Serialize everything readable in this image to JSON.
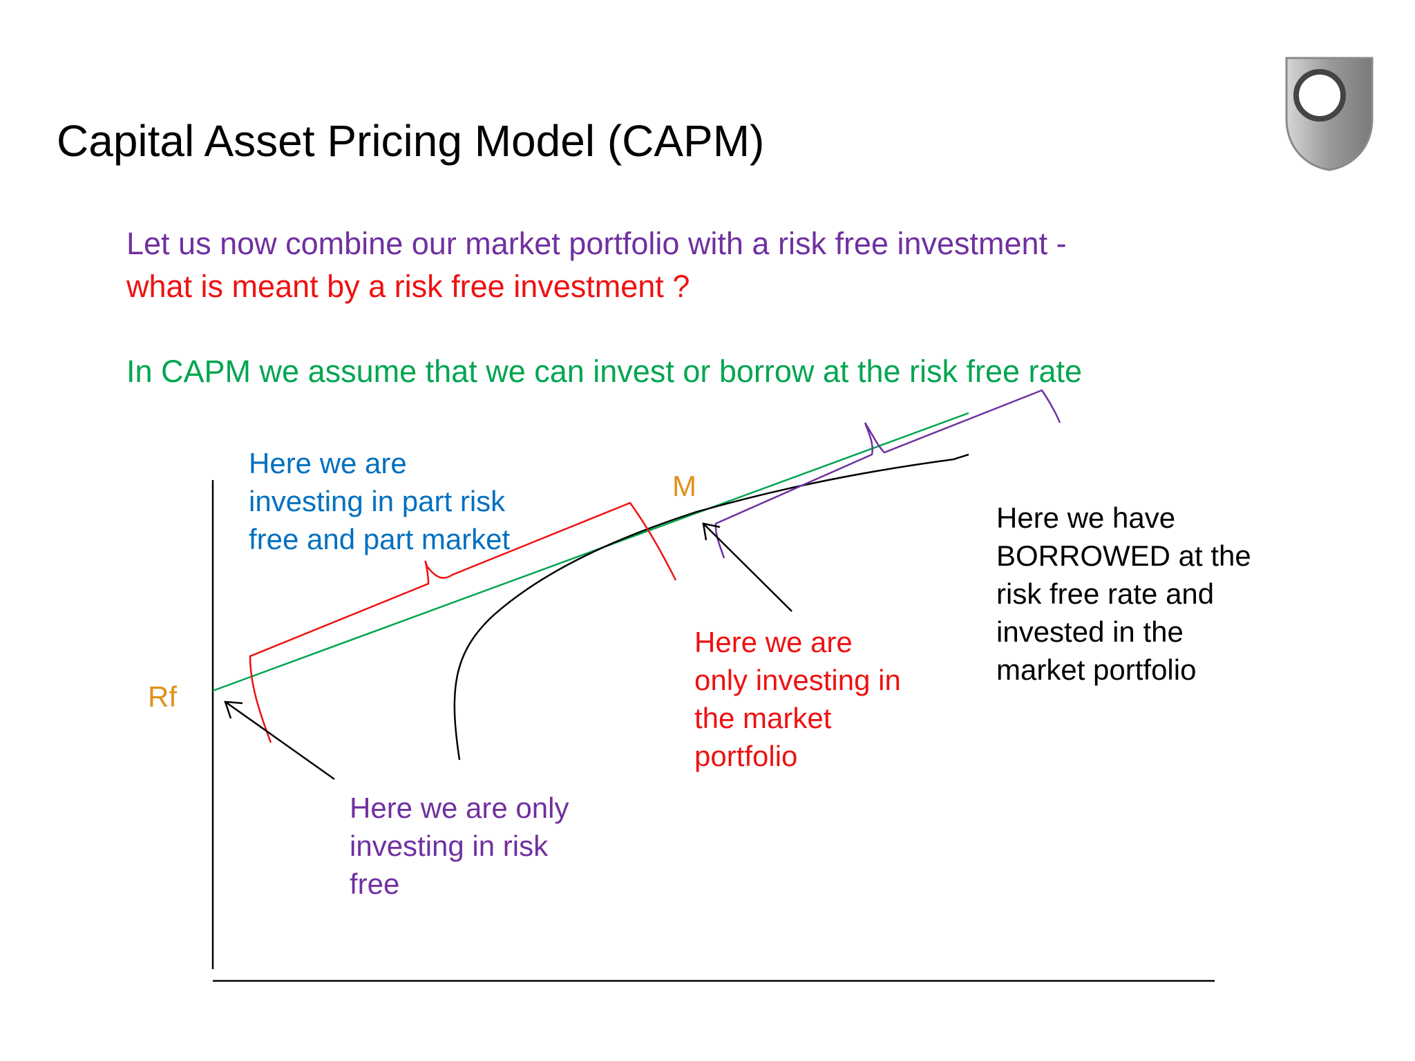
{
  "slide": {
    "title": "Capital Asset Pricing Model (CAPM)",
    "intro_line_1": "Let us now combine our market portfolio with a risk free investment -",
    "intro_line_2": "what is meant by a risk free investment ?",
    "intro_line_3": "In CAPM we assume that we can invest or borrow at the risk free rate"
  },
  "diagram": {
    "labels": {
      "rf": "Rf",
      "m": "M"
    },
    "notes": {
      "part_risk_free": [
        "Here we are",
        "investing in part risk",
        "free and part market"
      ],
      "only_market": [
        "Here we are",
        "only investing in",
        "the market",
        "portfolio"
      ],
      "borrowed": [
        "Here we have",
        "BORROWED at the",
        "risk free rate and",
        "invested in the",
        "market portfolio"
      ],
      "only_risk_free": [
        "Here we are only",
        "investing in risk",
        "free"
      ]
    }
  },
  "colors": {
    "title": "#000000",
    "purple": "#7030A0",
    "red": "#EE1111",
    "green": "#00A550",
    "blue": "#0070C0",
    "orange": "#E0901A",
    "black": "#000000"
  },
  "icons": {
    "logo": "open-university-shield-icon"
  }
}
